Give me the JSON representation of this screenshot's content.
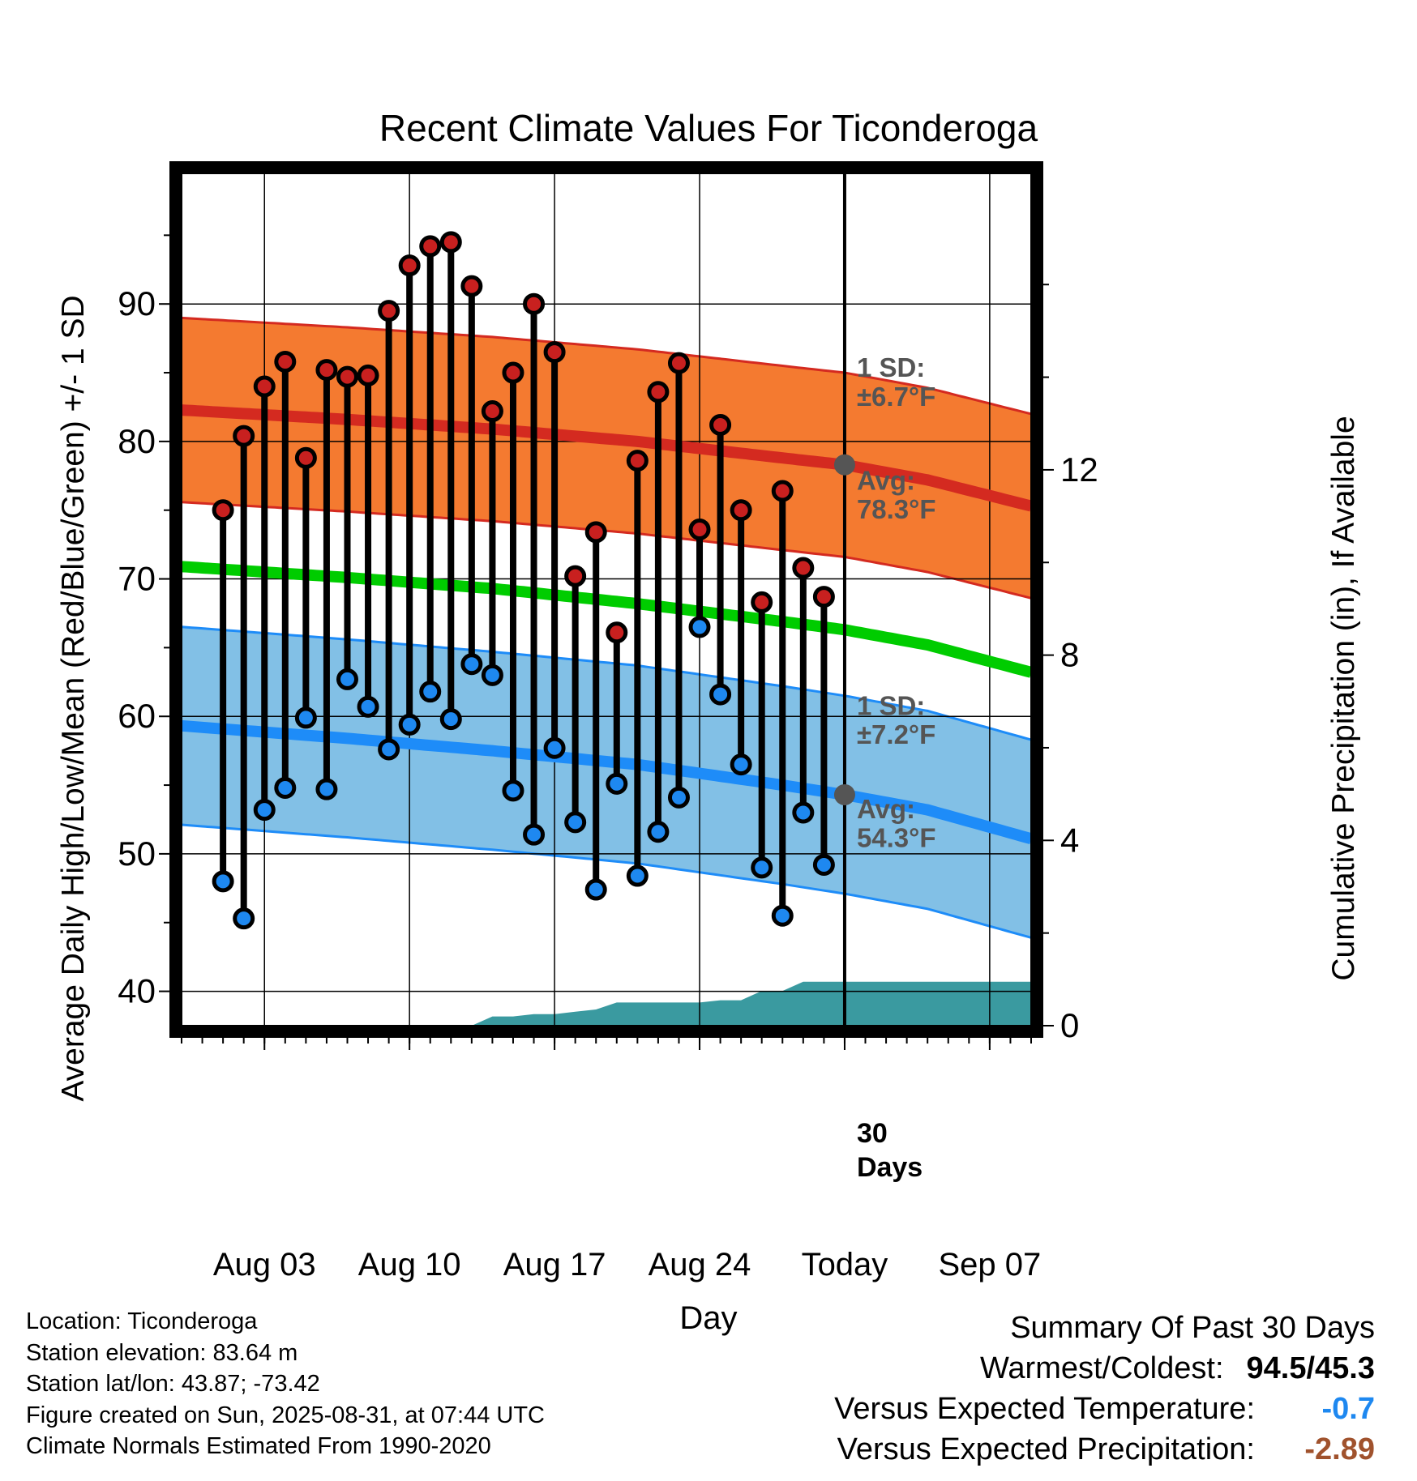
{
  "chart_data": {
    "type": "line",
    "title": "Recent Climate Values For Ticonderoga",
    "xlabel": "Day",
    "ylabel_left": "Average Daily High/Low/Mean (Red/Blue/Green) +/- 1 SD",
    "ylabel_right": "Cumulative Precipitation (in), If Available",
    "x_tick_labels": [
      "Aug 03",
      "Aug 10",
      "Aug 17",
      "Aug 24",
      "Today",
      "Sep 07"
    ],
    "x_range": [
      "2025-07-30",
      "2025-09-09"
    ],
    "today": "2025-08-31",
    "ylim_left": [
      37.5,
      99.5
    ],
    "y_ticks_left": [
      40,
      50,
      60,
      70,
      80,
      90
    ],
    "ylim_right": [
      0,
      18.4
    ],
    "y_ticks_right": [
      0,
      4,
      8,
      12
    ],
    "grid": true,
    "daily_observations": {
      "dates": [
        "2025-08-01",
        "2025-08-02",
        "2025-08-03",
        "2025-08-04",
        "2025-08-05",
        "2025-08-06",
        "2025-08-07",
        "2025-08-08",
        "2025-08-09",
        "2025-08-10",
        "2025-08-11",
        "2025-08-12",
        "2025-08-13",
        "2025-08-14",
        "2025-08-15",
        "2025-08-16",
        "2025-08-17",
        "2025-08-18",
        "2025-08-19",
        "2025-08-20",
        "2025-08-21",
        "2025-08-22",
        "2025-08-23",
        "2025-08-24",
        "2025-08-25",
        "2025-08-26",
        "2025-08-27",
        "2025-08-28",
        "2025-08-29",
        "2025-08-30"
      ],
      "high": [
        75.0,
        80.4,
        84.0,
        85.8,
        78.8,
        85.2,
        84.7,
        84.8,
        89.5,
        92.8,
        94.2,
        94.5,
        91.3,
        82.2,
        85.0,
        90.0,
        86.5,
        70.2,
        73.4,
        66.1,
        78.6,
        83.6,
        85.7,
        73.6,
        81.2,
        75.0,
        68.3,
        76.4,
        70.8,
        68.7
      ],
      "low": [
        48.0,
        45.3,
        53.2,
        54.8,
        59.9,
        54.7,
        62.7,
        60.7,
        57.6,
        59.4,
        61.8,
        59.8,
        63.8,
        63.0,
        54.6,
        51.4,
        57.7,
        52.3,
        47.4,
        55.1,
        48.4,
        51.6,
        54.1,
        66.5,
        61.6,
        56.5,
        49.0,
        45.5,
        53.0,
        49.2
      ],
      "high_color": "#c8201f",
      "low_color": "#1e88f0"
    },
    "normals": {
      "dates": [
        "2025-07-31",
        "2025-08-07",
        "2025-08-14",
        "2025-08-21",
        "2025-08-28",
        "2025-08-31",
        "2025-09-04",
        "2025-09-09"
      ],
      "avg_high": [
        82.2,
        81.6,
        80.9,
        80.0,
        78.8,
        78.3,
        77.2,
        75.3
      ],
      "avg_low": [
        59.2,
        58.4,
        57.5,
        56.5,
        55.0,
        54.3,
        53.2,
        51.1
      ],
      "mean": [
        70.8,
        70.1,
        69.3,
        68.2,
        66.9,
        66.3,
        65.2,
        63.2
      ],
      "high_sd": 6.7,
      "low_sd": 7.2,
      "high_color": "#d42a20",
      "high_band_color": "#f47a30",
      "low_color": "#1e8cf8",
      "low_band_color": "#82c0e6",
      "mean_color": "#00cc00"
    },
    "cumulative_precipitation": {
      "dates": [
        "2025-08-09",
        "2025-08-13",
        "2025-08-14",
        "2025-08-15",
        "2025-08-16",
        "2025-08-17",
        "2025-08-18",
        "2025-08-19",
        "2025-08-20",
        "2025-08-21",
        "2025-08-22",
        "2025-08-23",
        "2025-08-24",
        "2025-08-25",
        "2025-08-26",
        "2025-08-27",
        "2025-08-28",
        "2025-08-29",
        "2025-08-30",
        "2025-08-31",
        "2025-09-09"
      ],
      "values": [
        0.0,
        0.0,
        0.2,
        0.2,
        0.25,
        0.25,
        0.3,
        0.35,
        0.5,
        0.5,
        0.5,
        0.5,
        0.5,
        0.55,
        0.55,
        0.75,
        0.75,
        0.95,
        0.95,
        0.95,
        0.95
      ],
      "color": "#3a9aa0"
    },
    "annotations": {
      "high_sd_line1": "1 SD:",
      "high_sd_line2": "±6.7°F",
      "high_avg_line1": "Avg:",
      "high_avg_line2": "78.3°F",
      "low_sd_line1": "1 SD:",
      "low_sd_line2": "±7.2°F",
      "low_avg_line1": "Avg:",
      "low_avg_line2": "54.3°F",
      "days_line1": "30",
      "days_line2": "Days"
    }
  },
  "info": {
    "location": "Location: Ticonderoga",
    "elevation": "Station elevation: 83.64 m",
    "latlon": "Station lat/lon: 43.87; -73.42",
    "created": "Figure created on Sun, 2025-08-31, at 07:44 UTC",
    "normals": "Climate Normals Estimated From 1990-2020"
  },
  "summary": {
    "title": "Summary Of Past 30 Days",
    "warmest_label": "Warmest/Coldest:",
    "warmest_value": "94.5/45.3",
    "temp_label": "Versus Expected Temperature:",
    "temp_value": "-0.7",
    "temp_color": "#1e88f0",
    "precip_label": "Versus Expected Precipitation:",
    "precip_value": "-2.89",
    "precip_color": "#a0522d"
  }
}
